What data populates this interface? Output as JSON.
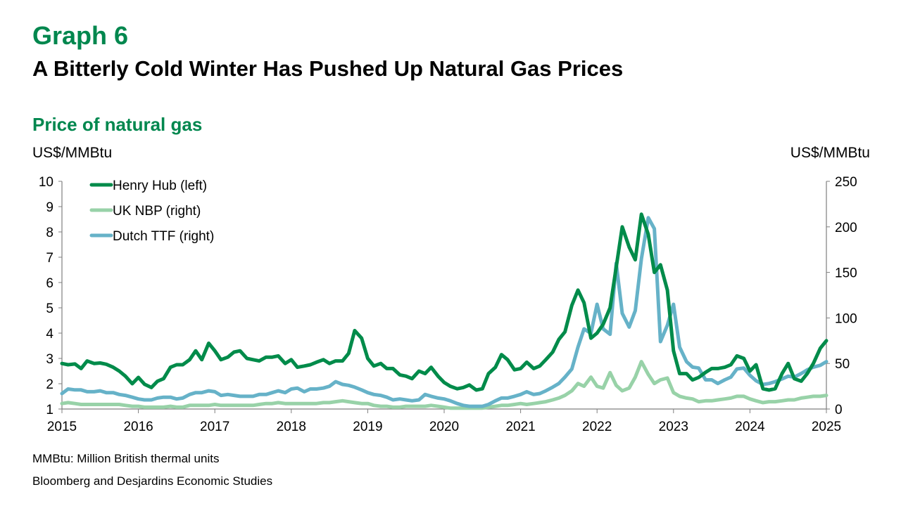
{
  "header": {
    "graph_number": "Graph 6",
    "title": "A Bitterly Cold Winter Has Pushed Up Natural Gas Prices",
    "subtitle": "Price of natural gas",
    "left_unit": "US$/MMBtu",
    "right_unit": "US$/MMBtu"
  },
  "footer": {
    "note": "MMBtu: Million British thermal units",
    "source": "Bloomberg and Desjardins Economic Studies"
  },
  "chart_data": {
    "type": "line",
    "x_ticks": [
      "2015",
      "2016",
      "2017",
      "2018",
      "2019",
      "2020",
      "2021",
      "2022",
      "2023",
      "2024",
      "2025"
    ],
    "left_axis": {
      "ticks": [
        "1",
        "2",
        "3",
        "4",
        "5",
        "6",
        "7",
        "8",
        "9",
        "10"
      ],
      "ylim": [
        1,
        10
      ]
    },
    "right_axis": {
      "ticks": [
        "0",
        "50",
        "100",
        "150",
        "200",
        "250"
      ],
      "ylim": [
        0,
        250
      ]
    },
    "x_range": [
      2015.0,
      2025.0
    ],
    "legend_position": "top-left",
    "grid": false,
    "series": [
      {
        "name": "Henry Hub (left)",
        "axis": "left",
        "color": "#008b4a",
        "x": [
          2015.0,
          2015.08,
          2015.17,
          2015.25,
          2015.33,
          2015.42,
          2015.5,
          2015.58,
          2015.67,
          2015.75,
          2015.83,
          2015.92,
          2016.0,
          2016.08,
          2016.17,
          2016.25,
          2016.33,
          2016.42,
          2016.5,
          2016.58,
          2016.67,
          2016.75,
          2016.83,
          2016.92,
          2017.0,
          2017.08,
          2017.17,
          2017.25,
          2017.33,
          2017.42,
          2017.5,
          2017.58,
          2017.67,
          2017.75,
          2017.83,
          2017.92,
          2018.0,
          2018.08,
          2018.17,
          2018.25,
          2018.33,
          2018.42,
          2018.5,
          2018.58,
          2018.67,
          2018.75,
          2018.83,
          2018.92,
          2019.0,
          2019.08,
          2019.17,
          2019.25,
          2019.33,
          2019.42,
          2019.5,
          2019.58,
          2019.67,
          2019.75,
          2019.83,
          2019.92,
          2020.0,
          2020.08,
          2020.17,
          2020.25,
          2020.33,
          2020.42,
          2020.5,
          2020.58,
          2020.67,
          2020.75,
          2020.83,
          2020.92,
          2021.0,
          2021.08,
          2021.17,
          2021.25,
          2021.33,
          2021.42,
          2021.5,
          2021.58,
          2021.67,
          2021.75,
          2021.83,
          2021.92,
          2022.0,
          2022.08,
          2022.17,
          2022.25,
          2022.33,
          2022.42,
          2022.5,
          2022.58,
          2022.67,
          2022.75,
          2022.83,
          2022.92,
          2023.0,
          2023.08,
          2023.17,
          2023.25,
          2023.33,
          2023.42,
          2023.5,
          2023.58,
          2023.67,
          2023.75,
          2023.83,
          2023.92,
          2024.0,
          2024.08,
          2024.17,
          2024.25,
          2024.33,
          2024.42,
          2024.5,
          2024.58,
          2024.67,
          2024.75,
          2024.83,
          2024.92,
          2025.0
        ],
        "values": [
          2.8,
          2.75,
          2.78,
          2.6,
          2.9,
          2.8,
          2.82,
          2.77,
          2.65,
          2.5,
          2.3,
          2.0,
          2.25,
          1.98,
          1.85,
          2.1,
          2.2,
          2.65,
          2.75,
          2.75,
          2.95,
          3.3,
          2.95,
          3.6,
          3.3,
          2.95,
          3.05,
          3.25,
          3.3,
          3.0,
          2.95,
          2.9,
          3.05,
          3.05,
          3.1,
          2.8,
          2.95,
          2.65,
          2.7,
          2.75,
          2.85,
          2.95,
          2.8,
          2.9,
          2.9,
          3.2,
          4.1,
          3.8,
          3.0,
          2.7,
          2.8,
          2.6,
          2.6,
          2.35,
          2.3,
          2.2,
          2.5,
          2.4,
          2.65,
          2.3,
          2.05,
          1.9,
          1.8,
          1.85,
          1.95,
          1.75,
          1.8,
          2.4,
          2.65,
          3.15,
          2.95,
          2.55,
          2.6,
          2.85,
          2.6,
          2.7,
          2.95,
          3.25,
          3.75,
          4.05,
          5.1,
          5.7,
          5.2,
          3.8,
          4.0,
          4.35,
          5.0,
          6.6,
          8.2,
          7.4,
          6.9,
          8.7,
          7.9,
          6.4,
          6.7,
          5.7,
          3.3,
          2.4,
          2.4,
          2.15,
          2.25,
          2.45,
          2.6,
          2.6,
          2.65,
          2.75,
          3.1,
          3.0,
          2.5,
          2.75,
          1.8,
          1.75,
          1.8,
          2.4,
          2.8,
          2.2,
          2.1,
          2.4,
          2.8,
          3.4,
          3.7
        ]
      },
      {
        "name": "UK NBP (right)",
        "axis": "right",
        "color": "#98d2a8",
        "x": [
          2015.0,
          2015.08,
          2015.17,
          2015.25,
          2015.33,
          2015.42,
          2015.5,
          2015.58,
          2015.67,
          2015.75,
          2015.83,
          2015.92,
          2016.0,
          2016.08,
          2016.17,
          2016.25,
          2016.33,
          2016.42,
          2016.5,
          2016.58,
          2016.67,
          2016.75,
          2016.83,
          2016.92,
          2017.0,
          2017.08,
          2017.17,
          2017.25,
          2017.33,
          2017.42,
          2017.5,
          2017.58,
          2017.67,
          2017.75,
          2017.83,
          2017.92,
          2018.0,
          2018.08,
          2018.17,
          2018.25,
          2018.33,
          2018.42,
          2018.5,
          2018.58,
          2018.67,
          2018.75,
          2018.83,
          2018.92,
          2019.0,
          2019.08,
          2019.17,
          2019.25,
          2019.33,
          2019.42,
          2019.5,
          2019.58,
          2019.67,
          2019.75,
          2019.83,
          2019.92,
          2020.0,
          2020.08,
          2020.17,
          2020.25,
          2020.33,
          2020.42,
          2020.5,
          2020.58,
          2020.67,
          2020.75,
          2020.83,
          2020.92,
          2021.0,
          2021.08,
          2021.17,
          2021.25,
          2021.33,
          2021.42,
          2021.5,
          2021.58,
          2021.67,
          2021.75,
          2021.83,
          2021.92,
          2022.0,
          2022.08,
          2022.17,
          2022.25,
          2022.33,
          2022.42,
          2022.5,
          2022.58,
          2022.67,
          2022.75,
          2022.83,
          2022.92,
          2023.0,
          2023.08,
          2023.17,
          2023.25,
          2023.33,
          2023.42,
          2023.5,
          2023.58,
          2023.67,
          2023.75,
          2023.83,
          2023.92,
          2024.0,
          2024.08,
          2024.17,
          2024.25,
          2024.33,
          2024.42,
          2024.5,
          2024.58,
          2024.67,
          2024.75,
          2024.83,
          2024.92,
          2025.0
        ],
        "values": [
          6,
          7,
          6,
          5,
          5,
          5,
          5,
          5,
          5,
          5,
          4,
          3,
          3,
          2,
          2,
          2,
          2,
          3,
          2,
          2,
          4,
          4,
          4,
          4,
          5,
          4,
          4,
          4,
          4,
          4,
          4,
          5,
          6,
          6,
          7,
          6,
          6,
          6,
          6,
          6,
          6,
          7,
          7,
          8,
          9,
          8,
          7,
          6,
          6,
          4,
          3,
          3,
          2,
          2,
          3,
          3,
          3,
          3,
          4,
          3,
          2,
          1,
          1,
          1,
          1,
          1,
          1,
          2,
          3,
          4,
          4,
          5,
          6,
          5,
          6,
          7,
          8,
          10,
          12,
          15,
          20,
          28,
          25,
          35,
          25,
          23,
          40,
          26,
          20,
          23,
          35,
          52,
          38,
          28,
          32,
          34,
          18,
          14,
          12,
          11,
          8,
          9,
          9,
          10,
          11,
          12,
          14,
          14,
          11,
          9,
          7,
          8,
          8,
          9,
          10,
          10,
          12,
          13,
          14,
          14,
          15
        ]
      },
      {
        "name": "Dutch TTF (right)",
        "axis": "right",
        "color": "#66b2c8",
        "x": [
          2015.0,
          2015.08,
          2015.17,
          2015.25,
          2015.33,
          2015.42,
          2015.5,
          2015.58,
          2015.67,
          2015.75,
          2015.83,
          2015.92,
          2016.0,
          2016.08,
          2016.17,
          2016.25,
          2016.33,
          2016.42,
          2016.5,
          2016.58,
          2016.67,
          2016.75,
          2016.83,
          2016.92,
          2017.0,
          2017.08,
          2017.17,
          2017.25,
          2017.33,
          2017.42,
          2017.5,
          2017.58,
          2017.67,
          2017.75,
          2017.83,
          2017.92,
          2018.0,
          2018.08,
          2018.17,
          2018.25,
          2018.33,
          2018.42,
          2018.5,
          2018.58,
          2018.67,
          2018.75,
          2018.83,
          2018.92,
          2019.0,
          2019.08,
          2019.17,
          2019.25,
          2019.33,
          2019.42,
          2019.5,
          2019.58,
          2019.67,
          2019.75,
          2019.83,
          2019.92,
          2020.0,
          2020.08,
          2020.17,
          2020.25,
          2020.33,
          2020.42,
          2020.5,
          2020.58,
          2020.67,
          2020.75,
          2020.83,
          2020.92,
          2021.0,
          2021.08,
          2021.17,
          2021.25,
          2021.33,
          2021.42,
          2021.5,
          2021.58,
          2021.67,
          2021.75,
          2021.83,
          2021.92,
          2022.0,
          2022.08,
          2022.17,
          2022.25,
          2022.33,
          2022.42,
          2022.5,
          2022.58,
          2022.67,
          2022.75,
          2022.83,
          2022.92,
          2023.0,
          2023.08,
          2023.17,
          2023.25,
          2023.33,
          2023.42,
          2023.5,
          2023.58,
          2023.67,
          2023.75,
          2023.83,
          2023.92,
          2024.0,
          2024.08,
          2024.17,
          2024.25,
          2024.33,
          2024.42,
          2024.5,
          2024.58,
          2024.67,
          2024.75,
          2024.83,
          2024.92,
          2025.0
        ],
        "values": [
          17,
          22,
          21,
          21,
          19,
          19,
          20,
          18,
          18,
          16,
          15,
          13,
          11,
          10,
          10,
          12,
          13,
          13,
          11,
          12,
          16,
          18,
          18,
          20,
          19,
          15,
          16,
          15,
          14,
          14,
          14,
          16,
          16,
          18,
          20,
          18,
          22,
          23,
          19,
          22,
          22,
          23,
          25,
          30,
          27,
          26,
          24,
          21,
          18,
          16,
          15,
          13,
          10,
          11,
          10,
          9,
          10,
          16,
          14,
          12,
          11,
          9,
          6,
          4,
          3,
          3,
          3,
          5,
          9,
          12,
          12,
          14,
          16,
          19,
          16,
          17,
          20,
          24,
          28,
          35,
          44,
          68,
          88,
          83,
          115,
          88,
          82,
          160,
          105,
          90,
          108,
          165,
          210,
          198,
          74,
          92,
          115,
          68,
          52,
          46,
          45,
          32,
          32,
          28,
          32,
          35,
          44,
          45,
          37,
          31,
          27,
          28,
          30,
          33,
          36,
          35,
          39,
          43,
          46,
          48,
          52
        ]
      }
    ]
  }
}
